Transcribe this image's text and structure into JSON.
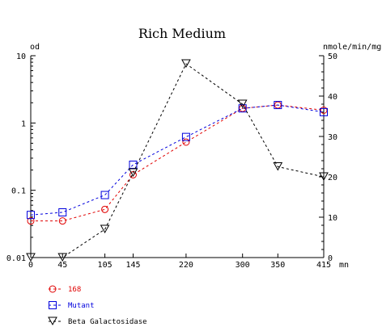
{
  "chart_data": {
    "type": "line",
    "title": "Rich Medium",
    "left_axis_label": "od",
    "right_axis_label": "nmole/min/mg",
    "x_unit": "mn",
    "x": [
      0,
      45,
      105,
      145,
      220,
      300,
      350,
      415
    ],
    "x_tick_labels": [
      "0",
      "45",
      "105",
      "145",
      "220",
      "300",
      "350",
      "415"
    ],
    "left_scale": "log",
    "left_ylim": [
      0.01,
      10
    ],
    "left_tick_labels": [
      "10",
      "1",
      "0.1",
      "0.01"
    ],
    "right_ylim": [
      0,
      50
    ],
    "right_tick_labels": [
      "50",
      "40",
      "30",
      "20",
      "10",
      "0"
    ],
    "grid": false,
    "legend_position": "bottom-left",
    "series": [
      {
        "name": "168",
        "axis": "left",
        "color": "#e00000",
        "marker": "circle",
        "line": "dashed",
        "values": [
          0.035,
          0.035,
          0.052,
          0.17,
          0.52,
          1.65,
          1.85,
          1.55
        ]
      },
      {
        "name": "Mutant",
        "axis": "left",
        "color": "#0000dd",
        "marker": "square",
        "line": "dashed",
        "values": [
          0.043,
          0.047,
          0.085,
          0.24,
          0.62,
          1.65,
          1.85,
          1.45
        ]
      },
      {
        "name": "Beta Galactosidase",
        "axis": "right",
        "color": "#000000",
        "marker": "triangle-down",
        "line": "dashed",
        "values": [
          0,
          0,
          7,
          21,
          48,
          38,
          22.5,
          20
        ]
      }
    ]
  }
}
